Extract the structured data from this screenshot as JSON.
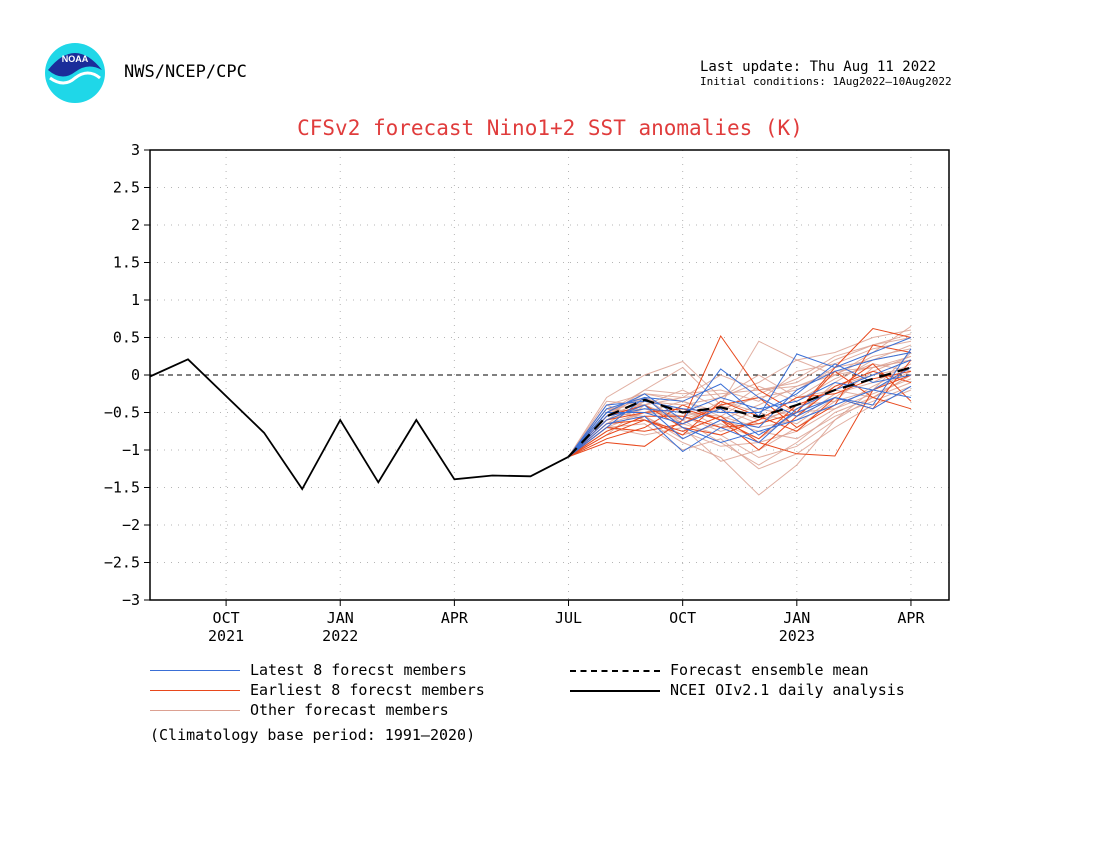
{
  "header": {
    "agency": "NWS/NCEP/CPC",
    "last_update": "Last update: Thu Aug 11 2022",
    "initial_conditions": "Initial conditions: 1Aug2022—10Aug2022",
    "logo_text": "NOAA"
  },
  "chart_data": {
    "type": "line",
    "title": "CFSv2 forecast Nino1+2 SST anomalies (K)",
    "xlabel": "",
    "ylabel": "",
    "ylim": [
      -3,
      3
    ],
    "y_ticks": [
      "3",
      "2.5",
      "2",
      "1.5",
      "1",
      "0.5",
      "0",
      "−0.5",
      "−1",
      "−1.5",
      "−2",
      "−2.5",
      "−3"
    ],
    "x_ticks": [
      {
        "month": "OCT",
        "year": "2021",
        "t": 1
      },
      {
        "month": "JAN",
        "year": "2022",
        "t": 4
      },
      {
        "month": "APR",
        "year": "",
        "t": 7
      },
      {
        "month": "JUL",
        "year": "",
        "t": 10
      },
      {
        "month": "OCT",
        "year": "",
        "t": 13
      },
      {
        "month": "JAN",
        "year": "2023",
        "t": 16
      },
      {
        "month": "APR",
        "year": "",
        "t": 19
      }
    ],
    "x_range": [
      -1,
      20
    ],
    "grid": true,
    "zero_line": "dashed",
    "colors": {
      "latest": "#3a6fd6",
      "earliest": "#e8481c",
      "other": "#dca192",
      "mean": "#000000",
      "obs": "#000000"
    },
    "observed": {
      "name": "NCEI OIv2.1 daily analysis",
      "t": [
        -1,
        0,
        2,
        3,
        4,
        5,
        6,
        7,
        8,
        9,
        10
      ],
      "values": [
        -0.02,
        0.21,
        -0.77,
        -1.52,
        -0.6,
        -1.43,
        -0.6,
        -1.39,
        -1.34,
        -1.35,
        -1.09
      ]
    },
    "forecast_t": [
      10,
      11,
      12,
      13,
      14,
      15,
      16,
      17,
      18,
      19
    ],
    "ensemble_mean": {
      "name": "Forecast ensemble mean",
      "values": [
        -1.09,
        -0.55,
        -0.33,
        -0.5,
        -0.43,
        -0.56,
        -0.4,
        -0.2,
        -0.05,
        0.1
      ]
    },
    "members_latest": [
      [
        -1.09,
        -0.45,
        -0.3,
        -0.35,
        -0.12,
        -0.55,
        0.28,
        0.1,
        0.3,
        0.5
      ],
      [
        -1.09,
        -0.65,
        -0.55,
        -1.02,
        -0.7,
        -0.9,
        -0.45,
        -0.2,
        0.0,
        0.2
      ],
      [
        -1.09,
        -0.5,
        -0.25,
        -0.6,
        0.08,
        -0.3,
        -0.55,
        -0.3,
        -0.4,
        0.35
      ],
      [
        -1.09,
        -0.6,
        -0.4,
        -0.85,
        -0.6,
        -0.7,
        -0.2,
        0.05,
        0.2,
        0.3
      ],
      [
        -1.09,
        -0.55,
        -0.45,
        -0.5,
        -0.3,
        -0.45,
        -0.35,
        -0.1,
        -0.2,
        -0.3
      ],
      [
        -1.09,
        -0.7,
        -0.3,
        -0.7,
        -0.9,
        -0.75,
        -0.6,
        -0.4,
        -0.2,
        0.1
      ],
      [
        -1.09,
        -0.4,
        -0.35,
        -0.45,
        -0.5,
        -0.5,
        -0.25,
        0.15,
        -0.1,
        0.0
      ],
      [
        -1.09,
        -0.5,
        -0.5,
        -0.65,
        -0.45,
        -0.8,
        -0.5,
        -0.3,
        -0.45,
        -0.15
      ]
    ],
    "members_earliest": [
      [
        -1.09,
        -0.9,
        -0.95,
        -0.6,
        0.52,
        -0.2,
        -0.5,
        0.1,
        0.62,
        0.5
      ],
      [
        -1.09,
        -0.8,
        -0.6,
        -0.75,
        -0.55,
        -0.9,
        -1.05,
        -1.08,
        -0.2,
        0.0
      ],
      [
        -1.09,
        -0.7,
        -0.75,
        -0.65,
        -0.4,
        -0.3,
        -0.7,
        -0.4,
        0.4,
        0.3
      ],
      [
        -1.09,
        -0.6,
        -0.5,
        -0.45,
        -0.6,
        -0.85,
        -0.4,
        -0.2,
        0.15,
        -0.35
      ],
      [
        -1.09,
        -0.75,
        -0.55,
        -0.55,
        -0.7,
        -0.65,
        -0.5,
        0.05,
        -0.3,
        -0.45
      ],
      [
        -1.09,
        -0.65,
        -0.6,
        -0.8,
        -0.35,
        -0.55,
        -0.75,
        -0.3,
        -0.45,
        0.2
      ],
      [
        -1.09,
        -0.55,
        -0.4,
        -0.7,
        -0.8,
        -0.6,
        -0.3,
        -0.25,
        -0.05,
        0.05
      ],
      [
        -1.09,
        -0.85,
        -0.7,
        -0.4,
        -0.6,
        -1.0,
        -0.55,
        -0.15,
        0.05,
        -0.1
      ]
    ],
    "members_other": [
      [
        -1.09,
        -0.3,
        0.0,
        0.18,
        -0.3,
        -0.1,
        0.2,
        0.3,
        0.5,
        0.6
      ],
      [
        -1.09,
        -0.5,
        -0.2,
        0.1,
        -0.4,
        0.45,
        0.2,
        0.0,
        0.3,
        0.65
      ],
      [
        -1.09,
        -0.8,
        -0.4,
        -0.6,
        -0.9,
        -1.2,
        -0.9,
        -0.5,
        -0.3,
        0.0
      ],
      [
        -1.09,
        -0.45,
        -0.6,
        -0.9,
        -1.1,
        -1.6,
        -1.2,
        -0.6,
        -0.2,
        0.3
      ],
      [
        -1.09,
        -0.7,
        -0.8,
        -0.7,
        -1.15,
        -1.0,
        -0.7,
        -0.35,
        0.1,
        0.2
      ],
      [
        -1.09,
        -0.4,
        -0.25,
        -0.3,
        0.0,
        -0.2,
        -0.1,
        0.2,
        0.4,
        0.55
      ],
      [
        -1.09,
        -0.6,
        -0.45,
        -0.55,
        -0.75,
        -0.6,
        -0.45,
        -0.15,
        0.0,
        0.1
      ],
      [
        -1.09,
        -0.55,
        -0.35,
        -0.4,
        -0.3,
        0.0,
        -0.3,
        0.0,
        0.25,
        0.35
      ],
      [
        -1.09,
        -0.65,
        -0.5,
        -0.45,
        -0.6,
        -0.4,
        -0.15,
        0.05,
        0.1,
        0.25
      ],
      [
        -1.09,
        -0.5,
        -0.3,
        -0.5,
        -0.55,
        -0.7,
        -0.6,
        -0.25,
        -0.1,
        0.15
      ],
      [
        -1.09,
        -0.75,
        -0.55,
        -0.8,
        -0.65,
        -0.85,
        -0.5,
        -0.45,
        -0.25,
        -0.05
      ],
      [
        -1.09,
        -0.35,
        -0.4,
        -0.2,
        -0.45,
        -0.3,
        -0.2,
        0.1,
        0.2,
        0.4
      ],
      [
        -1.09,
        -0.6,
        -0.3,
        -0.65,
        -0.35,
        -0.5,
        -0.65,
        -0.3,
        0.05,
        0.25
      ],
      [
        -1.09,
        -0.45,
        -0.5,
        -0.35,
        -0.5,
        -0.15,
        -0.35,
        -0.05,
        0.15,
        0.05
      ],
      [
        -1.09,
        -0.7,
        -0.65,
        -1.0,
        -0.85,
        -1.25,
        -1.05,
        -0.7,
        -0.4,
        -0.2
      ],
      [
        -1.09,
        -0.55,
        -0.2,
        -0.25,
        -0.2,
        -0.35,
        0.05,
        0.15,
        0.35,
        0.45
      ],
      [
        -1.09,
        -0.5,
        -0.45,
        -0.6,
        -0.4,
        -0.6,
        -0.3,
        -0.2,
        -0.3,
        0.0
      ],
      [
        -1.09,
        -0.65,
        -0.35,
        -0.45,
        -0.7,
        -0.45,
        -0.55,
        -0.1,
        0.2,
        0.3
      ],
      [
        -1.09,
        -0.4,
        -0.6,
        -0.75,
        -0.95,
        -0.9,
        -0.75,
        -0.45,
        -0.15,
        0.1
      ],
      [
        -1.09,
        -0.6,
        -0.4,
        -0.3,
        -0.25,
        -0.2,
        -0.15,
        0.0,
        0.1,
        0.2
      ],
      [
        -1.09,
        -0.5,
        -0.55,
        -0.85,
        -0.6,
        -0.75,
        -0.85,
        -0.55,
        -0.35,
        -0.15
      ],
      [
        -1.09,
        -0.55,
        -0.25,
        -0.35,
        -0.55,
        -0.25,
        -0.05,
        0.25,
        0.4,
        0.5
      ],
      [
        -1.09,
        -0.7,
        -0.5,
        -0.55,
        -0.45,
        -0.65,
        -0.4,
        -0.35,
        -0.2,
        0.05
      ],
      [
        -1.09,
        -0.45,
        -0.4,
        -0.65,
        -0.8,
        -1.1,
        -0.95,
        -0.6,
        -0.3,
        -0.1
      ]
    ],
    "legend": {
      "latest": "Latest 8 forecst members",
      "earliest": "Earliest 8 forecst members",
      "other": "Other forecast members",
      "mean": "Forecast ensemble mean",
      "obs": "NCEI OIv2.1 daily analysis"
    },
    "note": "(Climatology base period: 1991—2020)"
  }
}
